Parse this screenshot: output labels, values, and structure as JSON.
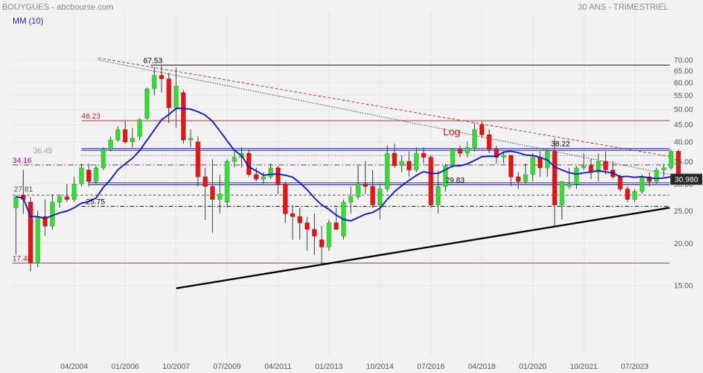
{
  "header": {
    "symbol": "BOUYGUES",
    "source": "abcbourse.com",
    "period": "30 ANS - TRIMESTRIEL",
    "indicator": "MM (10)"
  },
  "chart_data": {
    "type": "candlestick",
    "ylim": [
      15,
      72
    ],
    "y_ticks": [
      "15.00",
      "20.00",
      "25.00",
      "30.00",
      "35.00",
      "40.00",
      "45.00",
      "50.00",
      "55.00",
      "60.00",
      "65.00",
      "70.00"
    ],
    "y_tick_values": [
      15,
      20,
      25,
      30,
      35,
      40,
      45,
      50,
      55,
      60,
      65,
      70
    ],
    "x_ticks": [
      {
        "label": "04/2004",
        "index": 8
      },
      {
        "label": "01/2006",
        "index": 15
      },
      {
        "label": "10/2007",
        "index": 22
      },
      {
        "label": "07/2009",
        "index": 29
      },
      {
        "label": "04/2011",
        "index": 36
      },
      {
        "label": "01/2013",
        "index": 43
      },
      {
        "label": "10/2014",
        "index": 50
      },
      {
        "label": "07/2016",
        "index": 57
      },
      {
        "label": "04/2018",
        "index": 64
      },
      {
        "label": "01/2020",
        "index": 71
      },
      {
        "label": "10/2021",
        "index": 78
      },
      {
        "label": "07/2023",
        "index": 85
      }
    ],
    "last_price": "30.980",
    "last_value": 30.98,
    "annotations": {
      "log_label": "Log",
      "level_67": "67.53",
      "level_46": "46.23",
      "level_38": "38.22",
      "level_36": "36.45",
      "level_34": "34.16",
      "level_29": "29.83",
      "level_27": "27.81",
      "level_25": "25.75",
      "level_17": "17.48"
    },
    "levels": {
      "l67": 67.53,
      "l46": 46.23,
      "l38": 38.22,
      "l36": 36.45,
      "l34": 34.16,
      "l29": 29.83,
      "l27": 27.81,
      "l25": 25.75,
      "l17": 17.48
    },
    "candles": [
      [
        25.5,
        27.8,
        18.5,
        27.5
      ],
      [
        27.8,
        33.0,
        24.5,
        27.0
      ],
      [
        26.5,
        27.5,
        16.5,
        17.5
      ],
      [
        17.5,
        25.0,
        17.0,
        24.0
      ],
      [
        24.0,
        27.0,
        21.0,
        22.5
      ],
      [
        22.5,
        28.0,
        22.0,
        26.5
      ],
      [
        26.5,
        28.0,
        25.5,
        27.5
      ],
      [
        27.5,
        30.0,
        26.5,
        27.0
      ],
      [
        27.0,
        31.5,
        26.5,
        30.0
      ],
      [
        30.0,
        34.5,
        29.5,
        33.5
      ],
      [
        33.0,
        34.5,
        29.5,
        30.5
      ],
      [
        30.5,
        34.0,
        30.0,
        33.5
      ],
      [
        33.5,
        38.5,
        33.0,
        38.0
      ],
      [
        38.0,
        41.5,
        37.5,
        40.5
      ],
      [
        40.5,
        44.5,
        40.0,
        43.5
      ],
      [
        43.5,
        46.0,
        39.5,
        40.0
      ],
      [
        40.0,
        44.0,
        38.5,
        41.0
      ],
      [
        41.5,
        47.0,
        40.5,
        46.5
      ],
      [
        47.0,
        58.0,
        46.5,
        57.5
      ],
      [
        57.5,
        66.5,
        55.0,
        63.0
      ],
      [
        63.0,
        67.5,
        56.0,
        61.5
      ],
      [
        61.5,
        64.0,
        45.5,
        50.5
      ],
      [
        50.5,
        66.5,
        44.0,
        58.5
      ],
      [
        56.0,
        57.0,
        39.5,
        40.5
      ],
      [
        40.5,
        43.5,
        38.5,
        41.0
      ],
      [
        40.0,
        41.5,
        29.5,
        31.5
      ],
      [
        31.5,
        33.5,
        23.5,
        29.5
      ],
      [
        29.5,
        35.5,
        21.5,
        27.0
      ],
      [
        27.0,
        32.0,
        24.5,
        28.0
      ],
      [
        26.5,
        35.5,
        25.5,
        35.0
      ],
      [
        35.0,
        37.5,
        33.5,
        36.0
      ],
      [
        36.0,
        38.5,
        33.5,
        37.0
      ],
      [
        37.0,
        38.0,
        31.5,
        32.0
      ],
      [
        32.0,
        33.5,
        30.5,
        31.0
      ],
      [
        31.0,
        32.5,
        30.0,
        31.5
      ],
      [
        31.5,
        34.5,
        31.0,
        33.5
      ],
      [
        33.5,
        34.0,
        28.0,
        30.0
      ],
      [
        30.0,
        30.5,
        23.0,
        24.5
      ],
      [
        24.5,
        26.0,
        20.5,
        24.0
      ],
      [
        24.0,
        25.5,
        20.5,
        23.0
      ],
      [
        23.0,
        24.0,
        19.0,
        22.0
      ],
      [
        22.0,
        24.5,
        18.5,
        21.0
      ],
      [
        20.5,
        22.5,
        17.3,
        19.5
      ],
      [
        19.5,
        23.5,
        19.0,
        23.0
      ],
      [
        23.0,
        25.5,
        22.0,
        22.0
      ],
      [
        21.0,
        27.0,
        20.5,
        26.5
      ],
      [
        26.5,
        29.5,
        24.5,
        27.5
      ],
      [
        27.5,
        34.0,
        27.0,
        30.0
      ],
      [
        30.0,
        35.0,
        28.0,
        29.5
      ],
      [
        29.5,
        33.0,
        25.5,
        26.0
      ],
      [
        26.0,
        30.0,
        23.5,
        29.0
      ],
      [
        29.0,
        39.0,
        28.5,
        37.0
      ],
      [
        37.0,
        39.5,
        33.5,
        34.0
      ],
      [
        34.0,
        36.5,
        32.5,
        35.0
      ],
      [
        35.0,
        37.5,
        31.5,
        33.0
      ],
      [
        33.0,
        38.5,
        32.5,
        37.0
      ],
      [
        37.0,
        38.5,
        34.5,
        36.0
      ],
      [
        36.0,
        36.5,
        25.5,
        26.0
      ],
      [
        26.0,
        33.0,
        24.5,
        29.5
      ],
      [
        29.5,
        34.5,
        28.5,
        34.0
      ],
      [
        34.0,
        38.0,
        33.5,
        38.0
      ],
      [
        38.0,
        39.0,
        36.0,
        37.0
      ],
      [
        37.0,
        40.0,
        36.0,
        38.5
      ],
      [
        38.5,
        45.5,
        37.5,
        43.5
      ],
      [
        45.0,
        46.0,
        41.0,
        42.0
      ],
      [
        42.0,
        43.5,
        37.0,
        38.0
      ],
      [
        38.0,
        39.0,
        34.5,
        36.0
      ],
      [
        36.0,
        37.5,
        34.5,
        36.5
      ],
      [
        36.5,
        36.5,
        29.5,
        31.5
      ],
      [
        31.5,
        32.5,
        29.0,
        30.5
      ],
      [
        30.5,
        34.5,
        30.0,
        32.0
      ],
      [
        32.0,
        37.0,
        30.5,
        36.0
      ],
      [
        36.0,
        37.5,
        31.5,
        33.5
      ],
      [
        33.5,
        38.0,
        31.5,
        37.5
      ],
      [
        37.5,
        41.0,
        22.5,
        26.0
      ],
      [
        26.0,
        30.5,
        23.5,
        30.5
      ],
      [
        29.5,
        33.5,
        29.0,
        30.0
      ],
      [
        30.0,
        34.0,
        29.0,
        33.5
      ],
      [
        33.5,
        37.0,
        33.0,
        34.0
      ],
      [
        34.0,
        35.5,
        31.0,
        32.5
      ],
      [
        32.5,
        37.0,
        30.5,
        35.0
      ],
      [
        35.0,
        37.5,
        32.0,
        33.0
      ],
      [
        33.0,
        35.0,
        31.0,
        31.5
      ],
      [
        31.5,
        32.0,
        28.5,
        29.0
      ],
      [
        29.0,
        29.5,
        26.5,
        27.0
      ],
      [
        27.0,
        29.0,
        26.5,
        28.5
      ],
      [
        28.5,
        32.0,
        28.0,
        31.5
      ],
      [
        31.5,
        32.5,
        29.5,
        30.5
      ],
      [
        30.5,
        33.5,
        30.0,
        33.0
      ],
      [
        33.0,
        34.5,
        31.5,
        33.5
      ],
      [
        33.5,
        38.0,
        33.0,
        37.5
      ],
      [
        37.5,
        38.0,
        30.0,
        31.0
      ]
    ]
  }
}
